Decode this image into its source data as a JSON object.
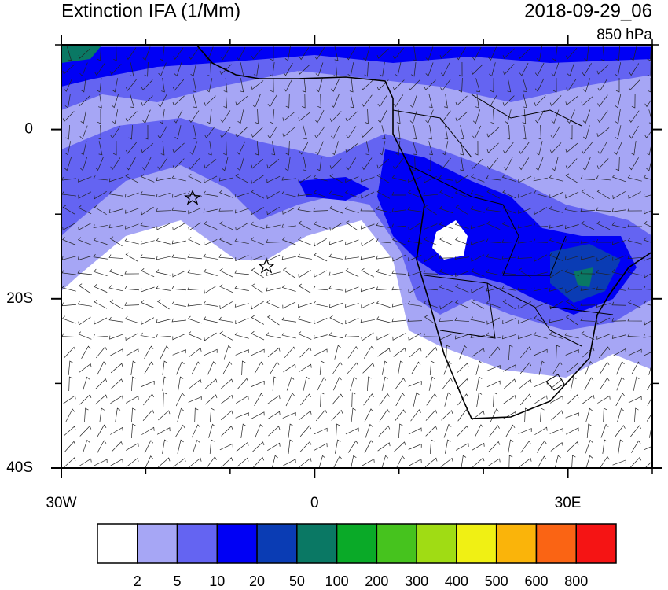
{
  "map": {
    "title": "Extinction IFA (1/Mm)",
    "date": "2018-09-29_06",
    "level": "850 hPa",
    "xlim": [
      -30,
      40
    ],
    "ylim": [
      -40,
      10
    ],
    "lon_ticks": [
      {
        "value": -30,
        "label": "30W"
      },
      0,
      {
        "value": 30,
        "label": "30E"
      }
    ],
    "lon_minor_ticks": [
      -20,
      -10,
      10,
      20,
      40
    ],
    "lat_ticks": [
      0,
      {
        "value": -20,
        "label": "20S"
      },
      {
        "value": -40,
        "label": "40S"
      }
    ],
    "lat_minor_ticks": [
      10,
      -10,
      -30
    ],
    "colorbar": {
      "colors": [
        "#ffffff",
        "#a6a6f5",
        "#6464f2",
        "#0000f5",
        "#0a3cb4",
        "#0a7864",
        "#0aaa28",
        "#46c31e",
        "#a0dc14",
        "#f0f014",
        "#fab40a",
        "#fa6414",
        "#f51414"
      ],
      "levels": [
        2,
        5,
        10,
        20,
        50,
        100,
        200,
        300,
        400,
        500,
        600,
        800
      ]
    }
  }
}
